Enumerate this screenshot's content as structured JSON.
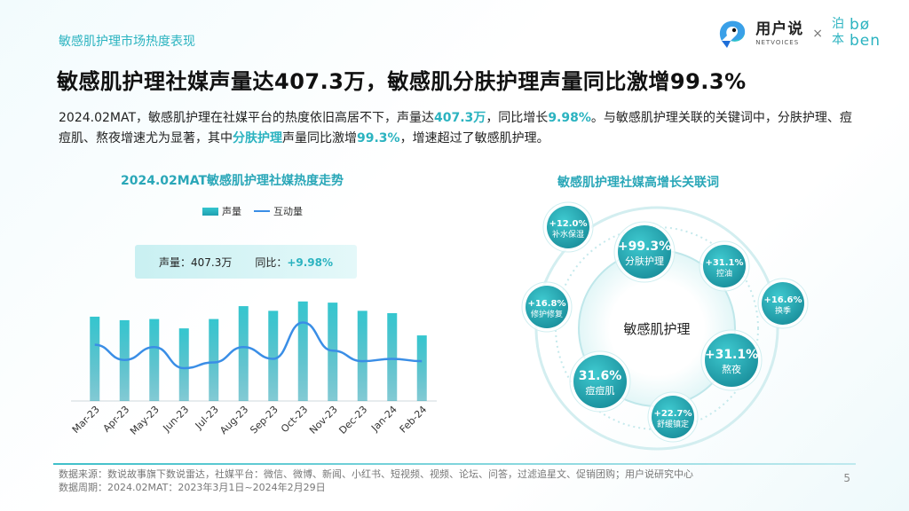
{
  "topline": "敏感肌护理市场热度表现",
  "logo": {
    "cn": "用户说",
    "en": "NETVOICES",
    "x": "×",
    "boben_cn1": "泊",
    "boben_lat1": "bø",
    "boben_cn2": "本",
    "boben_lat2": "ben"
  },
  "headline": "敏感肌护理社媒声量达407.3万，敏感肌分肤护理声量同比激增99.3%",
  "para": {
    "p1": "2024.02MAT，敏感肌护理在社媒平台的热度依旧高居不下，声量达",
    "h1": "407.3万",
    "p2": "，同比增长",
    "h2": "9.98%",
    "p3": "。与敏感肌护理关联的关键词中，分肤护理、痘痘肌、熬夜增速尤为显著，其中",
    "h3": "分肤护理",
    "p4": "声量同比激增",
    "h4": "99.3%",
    "p5": "，增速超过了敏感肌护理。"
  },
  "left_chart": {
    "title": "2024.02MAT敏感肌护理社媒热度走势",
    "legend_bar": "声量",
    "legend_line": "互动量",
    "stat_label": "声量：407.3万",
    "stat_yoy_label": "同比：",
    "stat_yoy_value": "+9.98%"
  },
  "chart_data": {
    "type": "bar",
    "categories": [
      "Mar-23",
      "Apr-23",
      "May-23",
      "Jun-23",
      "Jul-23",
      "Aug-23",
      "Sep-23",
      "Oct-23",
      "Nov-23",
      "Dec-23",
      "Jan-24",
      "Feb-24"
    ],
    "series": [
      {
        "name": "声量",
        "type": "bar",
        "values": [
          72,
          69,
          70,
          62,
          70,
          81,
          77,
          85,
          84,
          77,
          75,
          56
        ]
      },
      {
        "name": "互动量",
        "type": "line",
        "values": [
          48,
          35,
          46,
          28,
          33,
          46,
          36,
          67,
          43,
          34,
          36,
          34
        ]
      }
    ],
    "ylim": [
      0,
      100
    ],
    "colors": {
      "bar_top": "#35c6cf",
      "bar_bottom": "#1e9fb1",
      "line": "#3a8ee6"
    }
  },
  "right_chart": {
    "title": "敏感肌护理社媒高增长关联词",
    "center": "敏感肌护理",
    "bubbles": [
      {
        "id": "fenfu",
        "pct": "+99.3%",
        "label": "分肤护理"
      },
      {
        "id": "douji",
        "pct": "31.6%",
        "label": "痘痘肌"
      },
      {
        "id": "aoye",
        "pct": "+31.1%",
        "label": "熬夜"
      },
      {
        "id": "bushui",
        "pct": "+12.0%",
        "label": "补水保湿"
      },
      {
        "id": "kongyou",
        "pct": "+31.1%",
        "label": "控油"
      },
      {
        "id": "xiufu",
        "pct": "+16.8%",
        "label": "修护修复"
      },
      {
        "id": "huanji",
        "pct": "+16.6%",
        "label": "换季"
      },
      {
        "id": "shuhuan",
        "pct": "+22.7%",
        "label": "舒缓镇定"
      }
    ]
  },
  "footer": {
    "source": "数据来源：数说故事旗下数说雷达，社媒平台：微信、微博、新闻、小红书、短视频、视频、论坛、问答，过滤追星文、促销团购；用户说研究中心",
    "period": "数据周期：2024.02MAT：2023年3月1日~2024年2月29日",
    "page": "5"
  }
}
